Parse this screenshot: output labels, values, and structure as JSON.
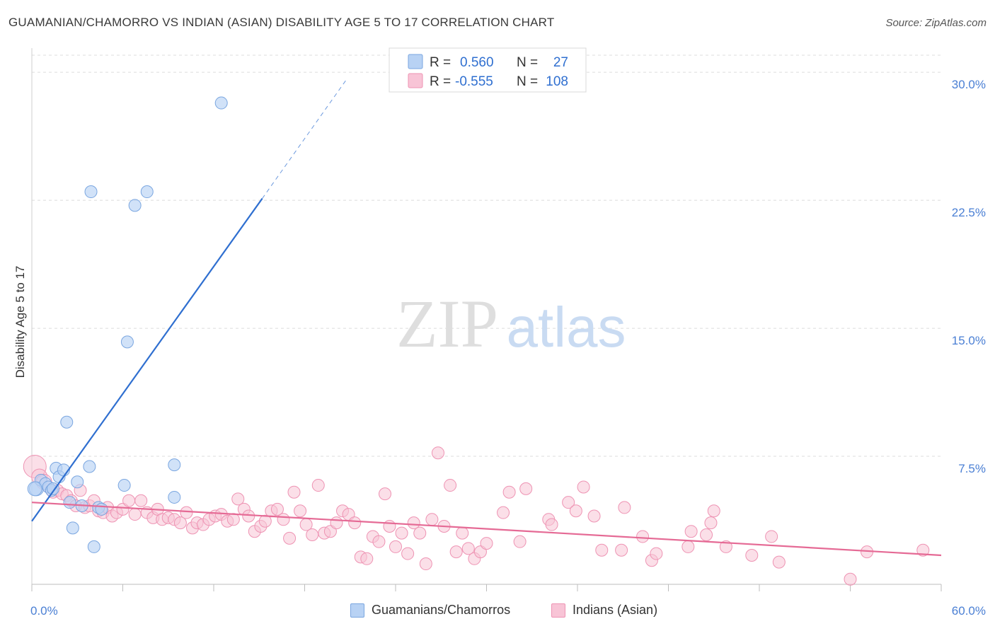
{
  "title": "GUAMANIAN/CHAMORRO VS INDIAN (ASIAN) DISABILITY AGE 5 TO 17 CORRELATION CHART",
  "source": "Source: ZipAtlas.com",
  "watermark": {
    "zip": "ZIP",
    "atlas": "atlas"
  },
  "legend": {
    "rows": [
      {
        "r_label": "R = ",
        "r_value": "0.560",
        "n_label": "N = ",
        "n_value": "27"
      },
      {
        "r_label": "R = ",
        "r_value": "-0.555",
        "n_label": "N = ",
        "n_value": "108"
      }
    ]
  },
  "bottom_legend": {
    "series1": "Guamanians/Chamorros",
    "series2": "Indians (Asian)"
  },
  "colors": {
    "blue_fill": "#b8d2f4",
    "blue_stroke": "#7aa6e0",
    "blue_line": "#2f6fd0",
    "pink_fill": "#f8c4d6",
    "pink_stroke": "#ee93b3",
    "pink_line": "#e56a95",
    "label_blue": "#4a7fd4",
    "grid": "#dcdcdc"
  },
  "chart_data": {
    "type": "scatter",
    "title": "GUAMANIAN/CHAMORRO VS INDIAN (ASIAN) DISABILITY AGE 5 TO 17 CORRELATION CHART",
    "xlabel": "",
    "ylabel": "Disability Age 5 to 17",
    "xlim": [
      0,
      60
    ],
    "ylim": [
      0,
      31
    ],
    "x_tick_labels": [
      "0.0%",
      "60.0%"
    ],
    "y_ticks": [
      7.5,
      15.0,
      22.5,
      30.0
    ],
    "y_tick_labels": [
      "7.5%",
      "15.0%",
      "22.5%",
      "30.0%"
    ],
    "grid": true,
    "series": [
      {
        "name": "Guamanians/Chamorros",
        "r": 0.56,
        "n": 27,
        "trend": {
          "x0": 0,
          "y0": 3.7,
          "x1": 15.2,
          "y1": 22.6,
          "dash_x1": 20.7,
          "dash_y1": 29.5
        },
        "points": [
          [
            0.3,
            5.6
          ],
          [
            0.6,
            6.1
          ],
          [
            0.9,
            5.9
          ],
          [
            1.1,
            5.7
          ],
          [
            1.3,
            5.5
          ],
          [
            1.6,
            6.8
          ],
          [
            1.8,
            6.3
          ],
          [
            2.1,
            6.7
          ],
          [
            2.3,
            9.5
          ],
          [
            2.5,
            4.8
          ],
          [
            2.7,
            3.3
          ],
          [
            3.0,
            6.0
          ],
          [
            3.3,
            4.6
          ],
          [
            3.8,
            6.9
          ],
          [
            3.9,
            23.0
          ],
          [
            4.1,
            2.2
          ],
          [
            4.4,
            4.5
          ],
          [
            4.6,
            4.4
          ],
          [
            6.1,
            5.8
          ],
          [
            6.3,
            14.2
          ],
          [
            6.8,
            22.2
          ],
          [
            7.6,
            23.0
          ],
          [
            9.4,
            7.0
          ],
          [
            9.4,
            5.1
          ],
          [
            12.5,
            28.2
          ],
          [
            0.2,
            5.6
          ],
          [
            1.4,
            5.6
          ]
        ]
      },
      {
        "name": "Indians (Asian)",
        "r": -0.555,
        "n": 108,
        "trend": {
          "x0": 0,
          "y0": 4.8,
          "x1": 60,
          "y1": 1.7
        },
        "points": [
          [
            0.2,
            6.9
          ],
          [
            0.5,
            6.3
          ],
          [
            0.8,
            6.0
          ],
          [
            1.1,
            5.7
          ],
          [
            1.4,
            5.4
          ],
          [
            1.7,
            5.5
          ],
          [
            2.0,
            5.3
          ],
          [
            2.3,
            5.2
          ],
          [
            2.6,
            4.9
          ],
          [
            2.9,
            4.6
          ],
          [
            3.2,
            5.5
          ],
          [
            3.5,
            4.5
          ],
          [
            3.8,
            4.6
          ],
          [
            4.1,
            4.9
          ],
          [
            4.4,
            4.3
          ],
          [
            4.7,
            4.2
          ],
          [
            5.0,
            4.5
          ],
          [
            5.3,
            4.0
          ],
          [
            5.6,
            4.2
          ],
          [
            6.0,
            4.4
          ],
          [
            6.4,
            4.9
          ],
          [
            6.8,
            4.1
          ],
          [
            7.2,
            4.9
          ],
          [
            7.6,
            4.2
          ],
          [
            8.0,
            3.9
          ],
          [
            8.3,
            4.4
          ],
          [
            8.6,
            3.8
          ],
          [
            9.0,
            3.9
          ],
          [
            9.4,
            3.8
          ],
          [
            9.8,
            3.6
          ],
          [
            10.2,
            4.2
          ],
          [
            10.6,
            3.3
          ],
          [
            10.9,
            3.6
          ],
          [
            11.3,
            3.5
          ],
          [
            11.7,
            3.8
          ],
          [
            12.1,
            4.0
          ],
          [
            12.5,
            4.1
          ],
          [
            12.9,
            3.7
          ],
          [
            13.3,
            3.8
          ],
          [
            13.6,
            5.0
          ],
          [
            14.0,
            4.4
          ],
          [
            14.3,
            4.0
          ],
          [
            14.7,
            3.1
          ],
          [
            15.1,
            3.4
          ],
          [
            15.4,
            3.7
          ],
          [
            15.8,
            4.3
          ],
          [
            16.2,
            4.4
          ],
          [
            16.6,
            3.8
          ],
          [
            17.0,
            2.7
          ],
          [
            17.3,
            5.4
          ],
          [
            17.7,
            4.3
          ],
          [
            18.1,
            3.5
          ],
          [
            18.5,
            2.9
          ],
          [
            18.9,
            5.8
          ],
          [
            19.3,
            3.0
          ],
          [
            19.7,
            3.1
          ],
          [
            20.1,
            3.6
          ],
          [
            20.5,
            4.3
          ],
          [
            20.9,
            4.1
          ],
          [
            21.3,
            3.6
          ],
          [
            21.7,
            1.6
          ],
          [
            22.1,
            1.5
          ],
          [
            22.5,
            2.8
          ],
          [
            22.9,
            2.5
          ],
          [
            23.3,
            5.3
          ],
          [
            23.6,
            3.4
          ],
          [
            24.0,
            2.2
          ],
          [
            24.4,
            3.0
          ],
          [
            24.8,
            1.8
          ],
          [
            25.2,
            3.6
          ],
          [
            25.6,
            3.0
          ],
          [
            26.0,
            1.2
          ],
          [
            26.4,
            3.8
          ],
          [
            26.8,
            7.7
          ],
          [
            27.2,
            3.4
          ],
          [
            27.6,
            5.8
          ],
          [
            28.0,
            1.9
          ],
          [
            28.4,
            3.0
          ],
          [
            28.8,
            2.1
          ],
          [
            29.2,
            1.5
          ],
          [
            29.6,
            1.9
          ],
          [
            30.0,
            2.4
          ],
          [
            31.1,
            4.2
          ],
          [
            31.5,
            5.4
          ],
          [
            32.2,
            2.5
          ],
          [
            32.6,
            5.6
          ],
          [
            34.1,
            3.8
          ],
          [
            34.3,
            3.5
          ],
          [
            35.4,
            4.8
          ],
          [
            35.9,
            4.3
          ],
          [
            36.4,
            5.7
          ],
          [
            37.1,
            4.0
          ],
          [
            37.6,
            2.0
          ],
          [
            38.9,
            2.0
          ],
          [
            39.1,
            4.5
          ],
          [
            40.3,
            2.8
          ],
          [
            40.9,
            1.4
          ],
          [
            41.2,
            1.8
          ],
          [
            43.3,
            2.2
          ],
          [
            43.5,
            3.1
          ],
          [
            44.5,
            2.9
          ],
          [
            44.8,
            3.6
          ],
          [
            45.0,
            4.3
          ],
          [
            45.8,
            2.2
          ],
          [
            47.5,
            1.7
          ],
          [
            48.8,
            2.8
          ],
          [
            49.3,
            1.3
          ],
          [
            54.0,
            0.3
          ],
          [
            55.1,
            1.9
          ],
          [
            58.8,
            2.0
          ]
        ]
      }
    ]
  }
}
